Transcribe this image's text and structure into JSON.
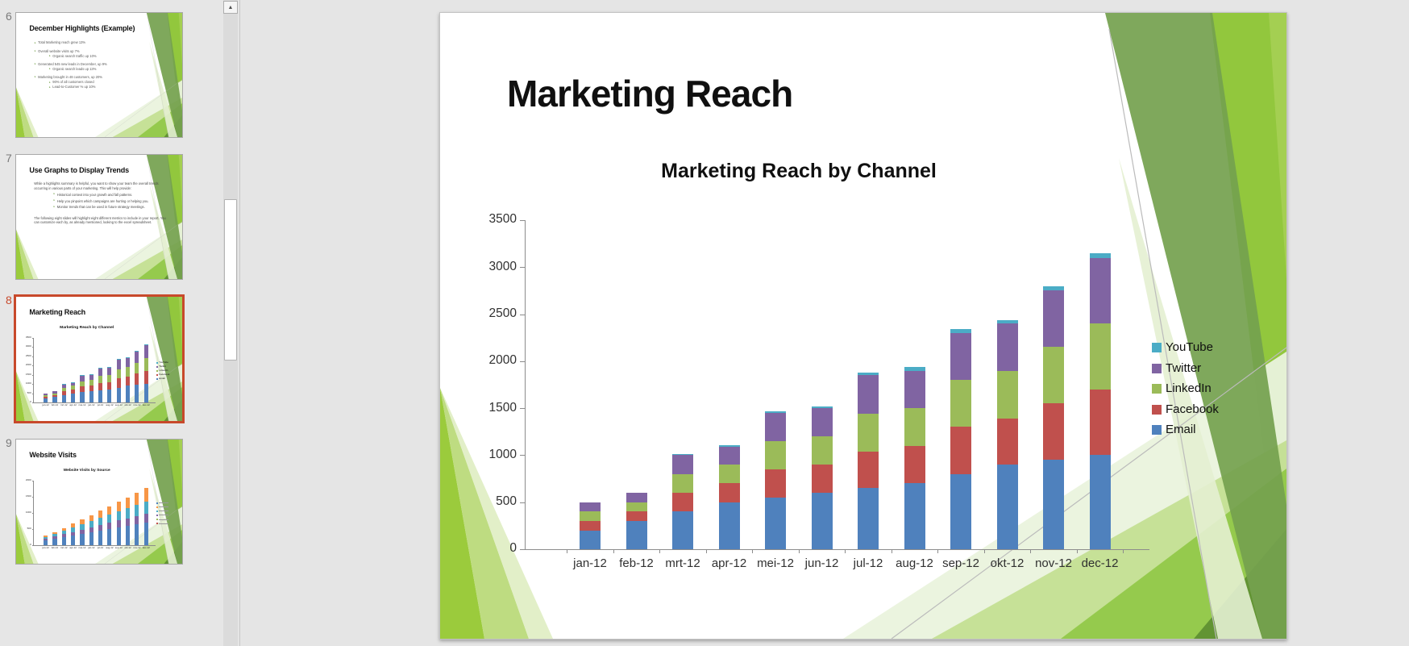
{
  "colors": {
    "selection": "#C8492B",
    "slide_bg": "#FFFFFF",
    "app_bg": "#E5E5E5",
    "bullet_marker": "#76A34F",
    "axis": "#8C8C8C"
  },
  "scrollbar": {
    "up_arrow": "▲"
  },
  "panel": {
    "slides": [
      {
        "number": "6",
        "selected": false,
        "kind": "bullets",
        "title": "December Highlights (Example)",
        "bullets": [
          {
            "level": 1,
            "text": "Total Marketing reach grew 13%"
          },
          {
            "level": 1,
            "text": "Overall website visits up 7%"
          },
          {
            "level": 2,
            "text": "Organic search traffic up 10%"
          },
          {
            "level": 1,
            "text": "Generated 545 new leads in December, up 9%"
          },
          {
            "level": 2,
            "text": "Organic search leads up 13%"
          },
          {
            "level": 1,
            "text": "Marketing brought in 48 customers, up 20%"
          },
          {
            "level": 2,
            "text": "90% of all customers closed"
          },
          {
            "level": 2,
            "text": "Lead-to-Customer % up 10%"
          }
        ]
      },
      {
        "number": "7",
        "selected": false,
        "kind": "text",
        "title": "Use Graphs to Display Trends",
        "intro": "While a highlights summary is helpful, you want to show your team the overall trends occurring in various parts of your marketing. This will help provide:",
        "bullets": [
          "Historical context into your growth and fall patterns.",
          "Help you pinpoint which campaigns are hurting or helping you.",
          "Monitor trends that can be used in future strategy meetings."
        ],
        "outro": "The following eight slides will highlight eight different metrics to include in your report. You can customize each by, as already mentioned, looking to the excel spreadsheet."
      },
      {
        "number": "8",
        "selected": true,
        "kind": "chart",
        "title": "Marketing Reach",
        "chart": "main"
      },
      {
        "number": "9",
        "selected": false,
        "kind": "chart",
        "title": "Website Visits",
        "chart": "visits"
      }
    ]
  },
  "main_slide": {
    "kind": "chart",
    "title": "Marketing Reach",
    "chart": "main"
  },
  "chart_data": [
    {
      "id": "main",
      "type": "bar",
      "stacked": true,
      "title": "Marketing Reach by Channel",
      "categories": [
        "jan-12",
        "feb-12",
        "mrt-12",
        "apr-12",
        "mei-12",
        "jun-12",
        "jul-12",
        "aug-12",
        "sep-12",
        "okt-12",
        "nov-12",
        "dec-12"
      ],
      "series": [
        {
          "name": "Email",
          "color": "#4F81BD",
          "values": [
            200,
            300,
            400,
            500,
            550,
            600,
            650,
            700,
            800,
            900,
            950,
            1000
          ]
        },
        {
          "name": "Facebook",
          "color": "#C0504D",
          "values": [
            100,
            100,
            200,
            200,
            300,
            300,
            390,
            400,
            500,
            490,
            600,
            700
          ]
        },
        {
          "name": "LinkedIn",
          "color": "#9BBB59",
          "values": [
            100,
            100,
            200,
            200,
            300,
            300,
            400,
            400,
            500,
            510,
            600,
            700
          ]
        },
        {
          "name": "Twitter",
          "color": "#8064A2",
          "values": [
            100,
            100,
            200,
            190,
            300,
            300,
            410,
            400,
            500,
            500,
            600,
            700
          ]
        },
        {
          "name": "YouTube",
          "color": "#4BACC6",
          "values": [
            0,
            0,
            10,
            15,
            20,
            20,
            30,
            35,
            40,
            40,
            50,
            50
          ]
        }
      ],
      "totals": [
        500,
        600,
        1010,
        1105,
        1470,
        1520,
        1880,
        1935,
        2340,
        2440,
        2800,
        3150
      ],
      "ylim": [
        0,
        3500
      ],
      "yticks": [
        0,
        500,
        1000,
        1500,
        2000,
        2500,
        3000,
        3500
      ],
      "grid": false,
      "legend_position": "right",
      "legend_order": [
        "YouTube",
        "Twitter",
        "LinkedIn",
        "Facebook",
        "Email"
      ]
    },
    {
      "id": "visits",
      "type": "bar",
      "stacked": true,
      "title": "Website Visits by Source",
      "categories": [
        "jan-12",
        "feb-12",
        "mrt-12",
        "apr-12",
        "mei-12",
        "jun-12",
        "jul-12",
        "aug-12",
        "sep-12",
        "okt-12",
        "nov-12",
        "dec-12"
      ],
      "series": [
        {
          "name": "",
          "color": "#4F81BD",
          "values": [
            150,
            200,
            250,
            300,
            350,
            400,
            450,
            500,
            550,
            600,
            650,
            700
          ]
        },
        {
          "name": "",
          "color": "#8064A2",
          "values": [
            50,
            70,
            90,
            110,
            130,
            150,
            170,
            190,
            210,
            230,
            250,
            270
          ]
        },
        {
          "name": "",
          "color": "#4BACC6",
          "values": [
            60,
            80,
            100,
            130,
            160,
            190,
            220,
            250,
            280,
            310,
            340,
            370
          ]
        },
        {
          "name": "",
          "color": "#F79646",
          "values": [
            40,
            60,
            90,
            120,
            150,
            180,
            220,
            260,
            300,
            340,
            380,
            420
          ]
        }
      ],
      "ylim": [
        0,
        2000
      ],
      "yticks": [
        0,
        500,
        1000,
        1500,
        2000
      ],
      "grid": false,
      "legend_position": "right",
      "legend_swatches": [
        "#4F81BD",
        "#F79646",
        "#4BACC6",
        "#8064A2",
        "#9BBB59",
        "#C0504D"
      ]
    }
  ]
}
